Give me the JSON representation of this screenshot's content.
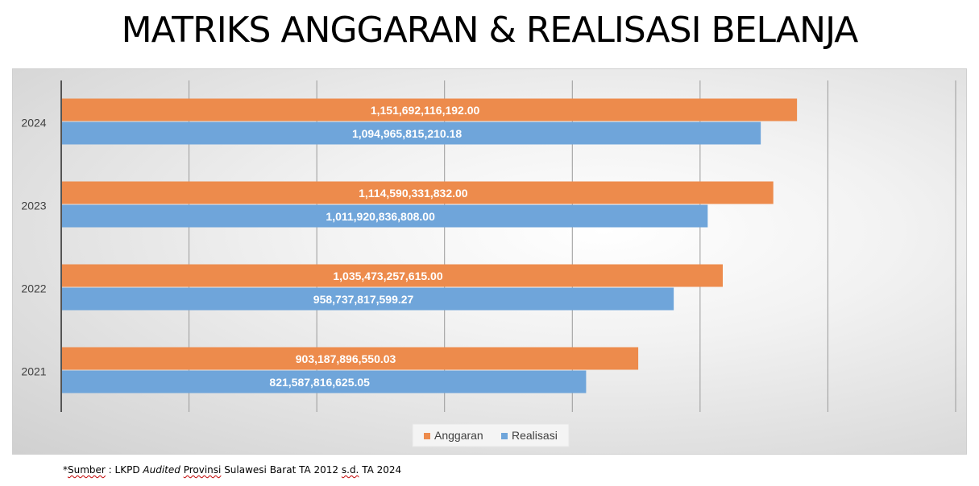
{
  "title": "MATRIKS ANGGARAN & REALISASI BELANJA",
  "footnote": {
    "prefix": "*",
    "sumber": "Sumber",
    "sep": " : LKPD ",
    "audited": "Audited",
    "space1": " ",
    "provinsi": "Provinsi",
    "middle": " Sulawesi Barat TA 2012 ",
    "sd": "s.d.",
    "end": " TA 2024"
  },
  "colors": {
    "anggaran": "#ED8B4C",
    "realisasi": "#6FA5DA",
    "axis": "#555555",
    "grid": "#9a9a9a"
  },
  "chart_data": {
    "type": "bar",
    "orientation": "horizontal",
    "title": "MATRIKS ANGGARAN & REALISASI BELANJA",
    "categories": [
      "2021",
      "2022",
      "2023",
      "2024"
    ],
    "series": [
      {
        "name": "Anggaran",
        "values": [
          903187896550.03,
          1035473257615.0,
          1114590331832.0,
          1151692116192.0
        ],
        "labels": [
          "903,187,896,550.03",
          "1,035,473,257,615.00",
          "1,114,590,331,832.00",
          "1,151,692,116,192.00"
        ]
      },
      {
        "name": "Realisasi",
        "values": [
          821587816625.05,
          958737817599.27,
          1011920836808.0,
          1094965815210.18
        ],
        "labels": [
          "821,587,816,625.05",
          "958,737,817,599.27",
          "1,011,920,836,808.00",
          "1,094,965,815,210.18"
        ]
      }
    ],
    "xlim": [
      0,
      1400000000000
    ],
    "grid": true,
    "x_tick_labels_shown": false,
    "legend": "bottom-center"
  }
}
